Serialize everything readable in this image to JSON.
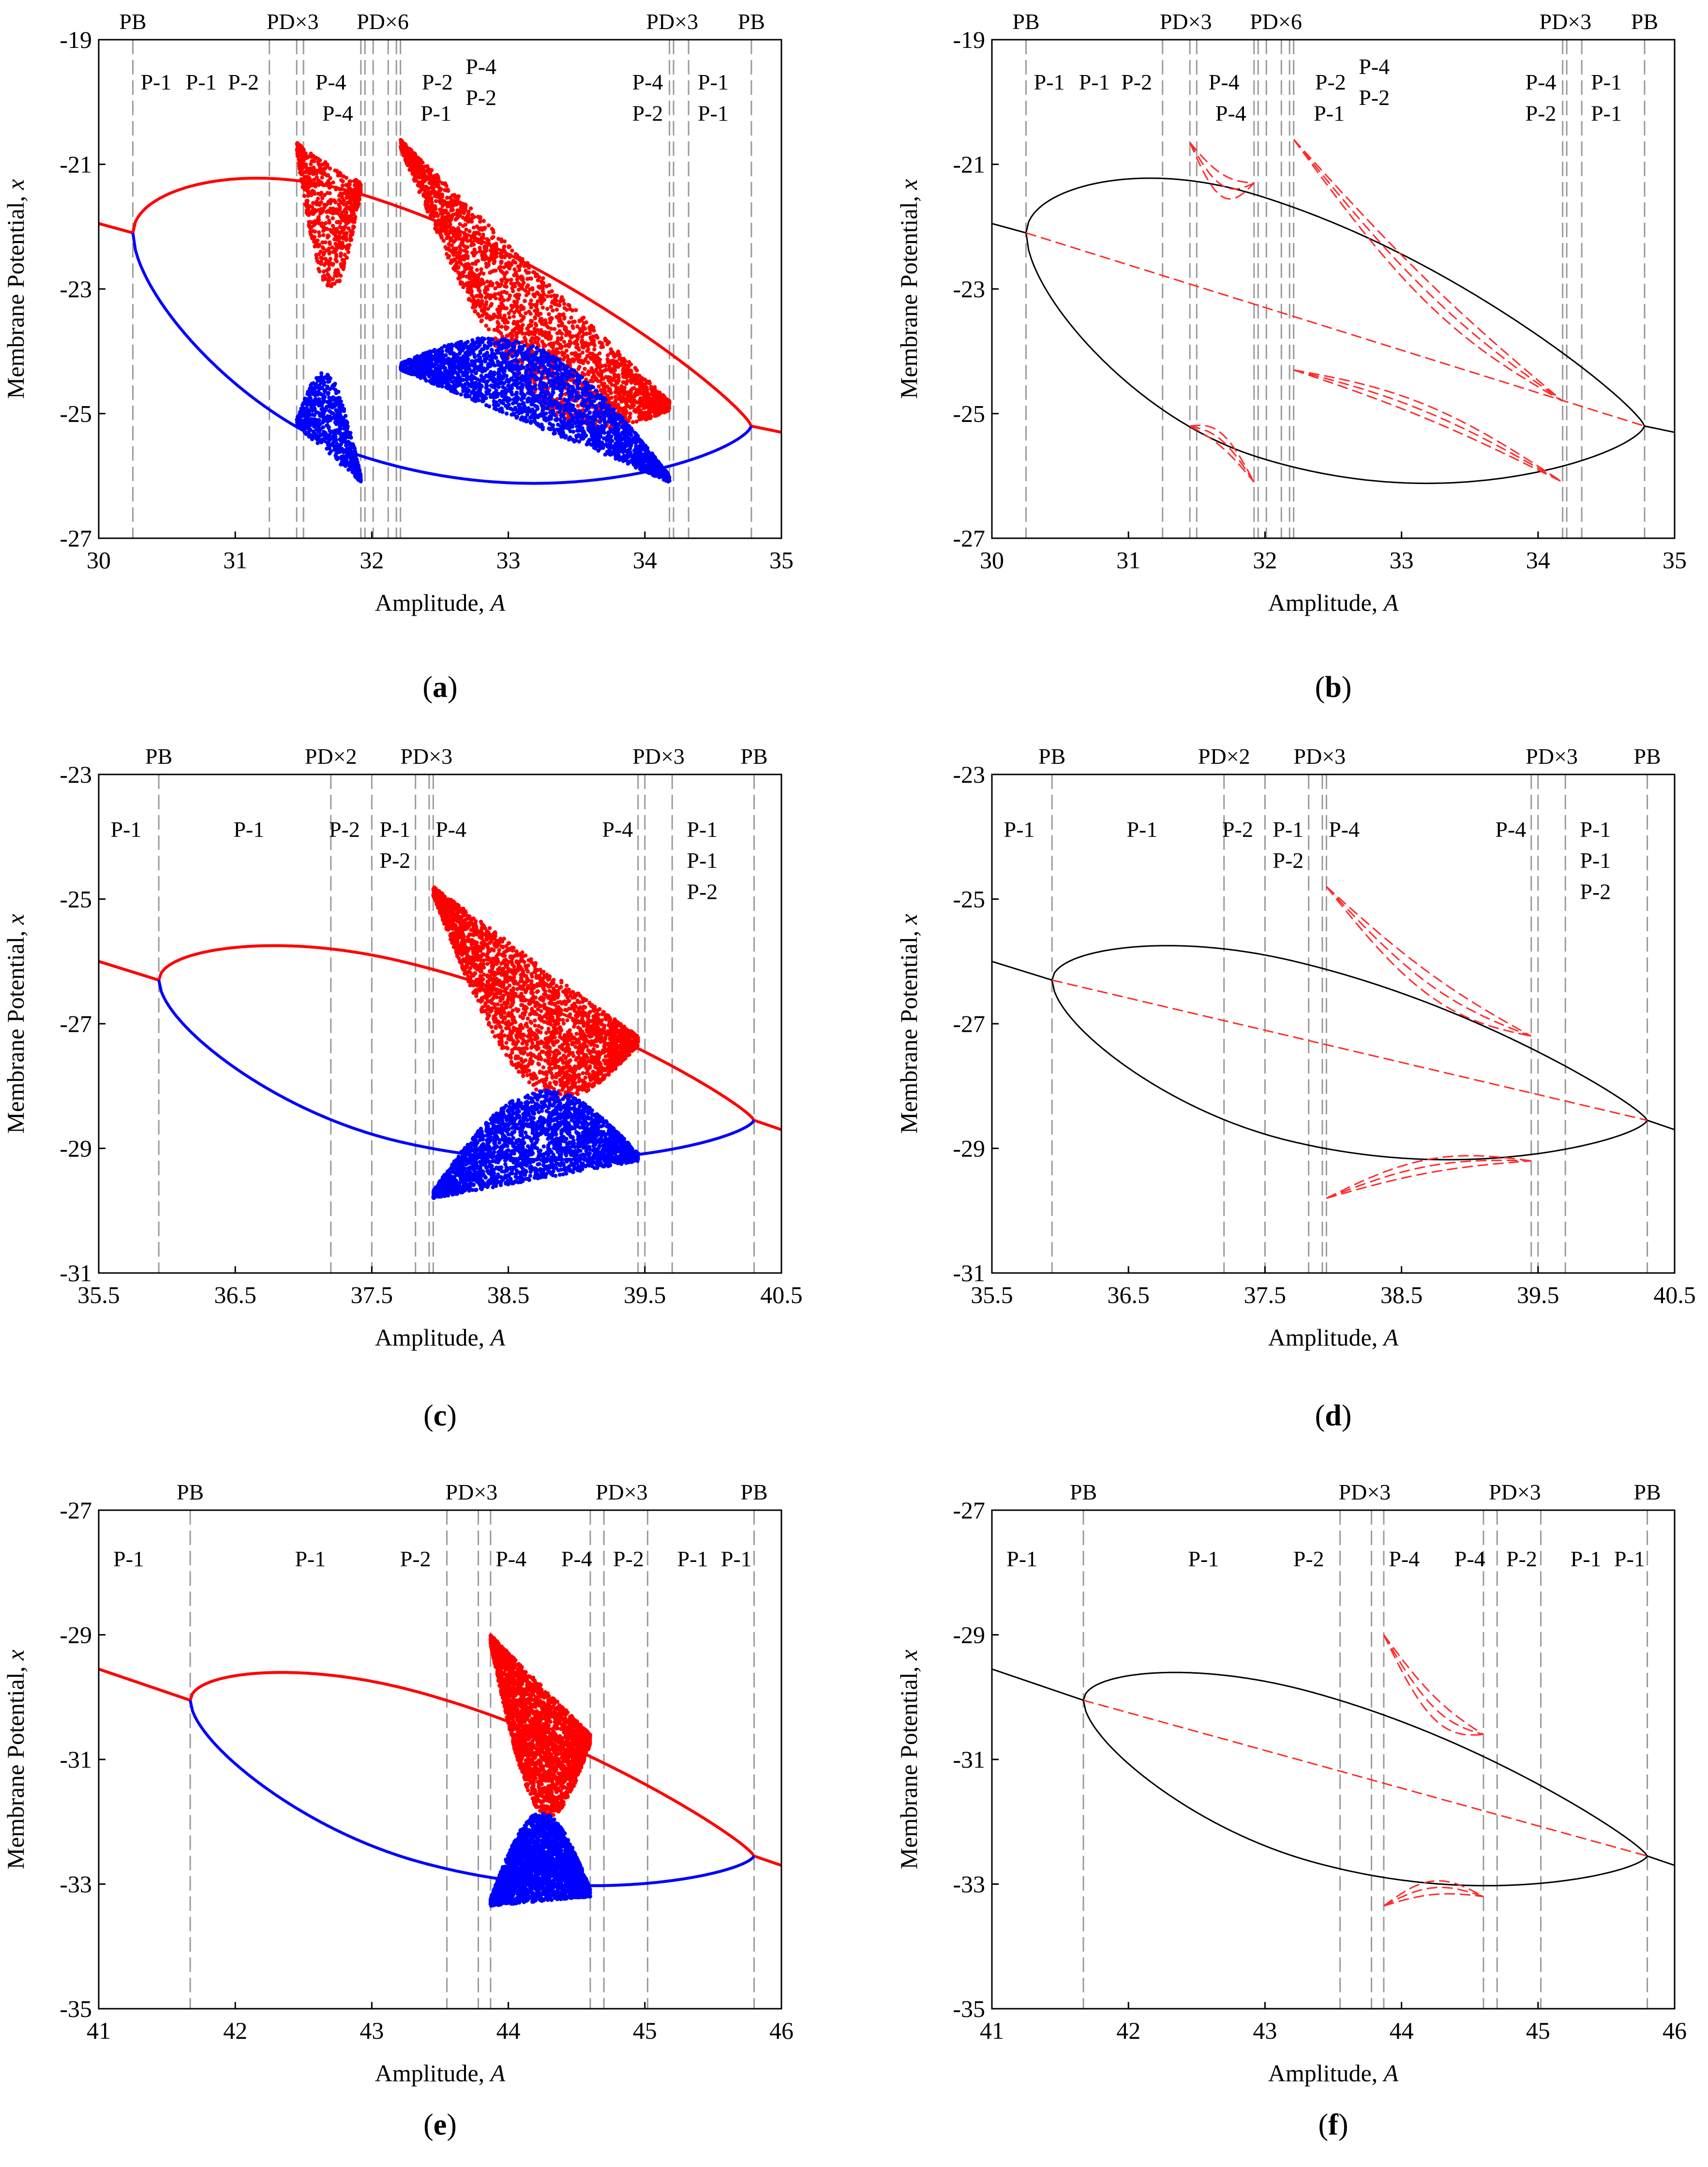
{
  "colors": {
    "red": "#ff0000",
    "blue": "#0000ff",
    "black": "#000000",
    "guide": "#9a9a9a",
    "dashed_red": "#ff2a2a"
  },
  "chart_data": [
    {
      "id": "a",
      "caption": "(a)",
      "type": "scatter",
      "xlabel": "Amplitude, A",
      "ylabel": "Membrane Potential, x",
      "xlim": [
        30,
        35
      ],
      "ylim": [
        -27,
        -19
      ],
      "xticks": [
        "30",
        "31",
        "32",
        "33",
        "34",
        "35"
      ],
      "yticks": [
        "-27",
        "-25",
        "-23",
        "-21",
        "-19"
      ],
      "boundaries": [
        30.25,
        31.25,
        31.45,
        31.5,
        31.92,
        31.95,
        32.01,
        32.12,
        32.18,
        32.21,
        34.18,
        34.21,
        34.32,
        34.78
      ],
      "top_labels": [
        {
          "x": 30.25,
          "text": "PB"
        },
        {
          "x": 31.42,
          "text": "PD×3"
        },
        {
          "x": 32.08,
          "text": "PD×6"
        },
        {
          "x": 34.2,
          "text": "PD×3"
        },
        {
          "x": 34.78,
          "text": "PB"
        }
      ],
      "region_labels": [
        {
          "x": 30.42,
          "y": -19.8,
          "text": "P-1"
        },
        {
          "x": 30.75,
          "y": -19.8,
          "text": "P-1"
        },
        {
          "x": 31.06,
          "y": -19.8,
          "text": "P-2"
        },
        {
          "x": 31.7,
          "y": -19.8,
          "text": "P-4"
        },
        {
          "x": 31.75,
          "y": -20.3,
          "text": "P-4"
        },
        {
          "x": 32.48,
          "y": -19.8,
          "text": "P-2"
        },
        {
          "x": 32.47,
          "y": -20.3,
          "text": "P-1"
        },
        {
          "x": 32.8,
          "y": -19.55,
          "text": "P-4"
        },
        {
          "x": 32.8,
          "y": -20.05,
          "text": "P-2"
        },
        {
          "x": 34.02,
          "y": -19.8,
          "text": "P-4"
        },
        {
          "x": 34.02,
          "y": -20.3,
          "text": "P-2"
        },
        {
          "x": 34.5,
          "y": -19.8,
          "text": "P-1"
        },
        {
          "x": 34.5,
          "y": -20.3,
          "text": "P-1"
        }
      ],
      "pre": [
        30,
        30.25
      ],
      "post": [
        34.78,
        35
      ],
      "p1_range": [
        30.25,
        34.78
      ],
      "p1_mean": [
        -22.1,
        -25.2
      ],
      "p1_peak_x": 31.95,
      "p1_peak_amp": 4.2,
      "chaos_windows": [
        {
          "x0": 31.45,
          "x1": 31.92,
          "upper": [
            -20.65,
            -21.3
          ],
          "lower": [
            -25.2,
            -26.1
          ]
        },
        {
          "x0": 32.21,
          "x1": 34.18,
          "upper": [
            -20.6,
            -24.8
          ],
          "lower": [
            -24.3,
            -26.1
          ]
        }
      ],
      "stable_line": [
        [
          30,
          -21.95
        ],
        [
          30.25,
          -22.1
        ],
        [
          34.78,
          -25.2
        ],
        [
          35,
          -25.3
        ]
      ]
    },
    {
      "id": "b",
      "caption": "(b)",
      "type": "line",
      "xlabel": "Amplitude, A",
      "ylabel": "Membrane Potential, x",
      "xlim": [
        30,
        35
      ],
      "ylim": [
        -27,
        -19
      ],
      "xticks": [
        "30",
        "31",
        "32",
        "33",
        "34",
        "35"
      ],
      "yticks": [
        "-27",
        "-25",
        "-23",
        "-21",
        "-19"
      ],
      "boundaries": [
        30.25,
        31.25,
        31.45,
        31.5,
        31.92,
        31.95,
        32.01,
        32.12,
        32.18,
        32.21,
        34.18,
        34.21,
        34.32,
        34.78
      ],
      "top_labels": [
        {
          "x": 30.25,
          "text": "PB"
        },
        {
          "x": 31.42,
          "text": "PD×3"
        },
        {
          "x": 32.08,
          "text": "PD×6"
        },
        {
          "x": 34.2,
          "text": "PD×3"
        },
        {
          "x": 34.78,
          "text": "PB"
        }
      ],
      "region_labels": [
        {
          "x": 30.42,
          "y": -19.8,
          "text": "P-1"
        },
        {
          "x": 30.75,
          "y": -19.8,
          "text": "P-1"
        },
        {
          "x": 31.06,
          "y": -19.8,
          "text": "P-2"
        },
        {
          "x": 31.7,
          "y": -19.8,
          "text": "P-4"
        },
        {
          "x": 31.75,
          "y": -20.3,
          "text": "P-4"
        },
        {
          "x": 32.48,
          "y": -19.8,
          "text": "P-2"
        },
        {
          "x": 32.47,
          "y": -20.3,
          "text": "P-1"
        },
        {
          "x": 32.8,
          "y": -19.55,
          "text": "P-4"
        },
        {
          "x": 32.8,
          "y": -20.05,
          "text": "P-2"
        },
        {
          "x": 34.02,
          "y": -19.8,
          "text": "P-4"
        },
        {
          "x": 34.02,
          "y": -20.3,
          "text": "P-2"
        },
        {
          "x": 34.5,
          "y": -19.8,
          "text": "P-1"
        },
        {
          "x": 34.5,
          "y": -20.3,
          "text": "P-1"
        }
      ],
      "pre": [
        30,
        30.25
      ],
      "post": [
        34.78,
        35
      ],
      "p1_range": [
        30.25,
        34.78
      ],
      "p1_mean": [
        -22.1,
        -25.2
      ],
      "p1_peak_x": 31.95,
      "p1_peak_amp": 4.2,
      "chaos_windows": [
        {
          "x0": 31.45,
          "x1": 31.92,
          "upper": [
            -20.65,
            -21.3
          ],
          "lower": [
            -25.2,
            -26.1
          ]
        },
        {
          "x0": 32.21,
          "x1": 34.18,
          "upper": [
            -20.6,
            -24.8
          ],
          "lower": [
            -24.3,
            -26.1
          ]
        }
      ],
      "stable_line": [
        [
          30,
          -21.95
        ],
        [
          30.25,
          -22.1
        ],
        [
          34.78,
          -25.2
        ],
        [
          35,
          -25.3
        ]
      ]
    },
    {
      "id": "c",
      "caption": "(c)",
      "type": "scatter",
      "xlabel": "Amplitude, A",
      "ylabel": "Membrane Potential, x",
      "xlim": [
        35.5,
        40.5
      ],
      "ylim": [
        -31,
        -23
      ],
      "xticks": [
        "35.5",
        "36.5",
        "37.5",
        "38.5",
        "39.5",
        "40.5"
      ],
      "yticks": [
        "-31",
        "-29",
        "-27",
        "-25",
        "-23"
      ],
      "boundaries": [
        35.94,
        37.2,
        37.5,
        37.82,
        37.92,
        37.95,
        39.45,
        39.5,
        39.7,
        40.3
      ],
      "top_labels": [
        {
          "x": 35.94,
          "text": "PB"
        },
        {
          "x": 37.2,
          "text": "PD×2"
        },
        {
          "x": 37.9,
          "text": "PD×3"
        },
        {
          "x": 39.6,
          "text": "PD×3"
        },
        {
          "x": 40.3,
          "text": "PB"
        }
      ],
      "region_labels": [
        {
          "x": 35.7,
          "y": -24.0,
          "text": "P-1"
        },
        {
          "x": 36.6,
          "y": -24.0,
          "text": "P-1"
        },
        {
          "x": 37.3,
          "y": -24.0,
          "text": "P-2"
        },
        {
          "x": 37.67,
          "y": -24.0,
          "text": "P-1"
        },
        {
          "x": 37.67,
          "y": -24.5,
          "text": "P-2"
        },
        {
          "x": 38.08,
          "y": -24.0,
          "text": "P-4"
        },
        {
          "x": 39.3,
          "y": -24.0,
          "text": "P-4"
        },
        {
          "x": 39.92,
          "y": -24.0,
          "text": "P-1"
        },
        {
          "x": 39.92,
          "y": -24.5,
          "text": "P-1"
        },
        {
          "x": 39.92,
          "y": -25.0,
          "text": "P-2"
        }
      ],
      "pre": [
        35.5,
        35.94
      ],
      "post": [
        40.3,
        40.5
      ],
      "p1_range": [
        35.94,
        40.3
      ],
      "p1_mean": [
        -26.3,
        -28.55
      ],
      "p1_peak_x": 37.7,
      "p1_peak_amp": 2.9,
      "chaos_windows": [
        {
          "x0": 37.95,
          "x1": 39.45,
          "upper": [
            -24.8,
            -27.2
          ],
          "lower": [
            -29.8,
            -29.2
          ]
        }
      ],
      "stable_line": [
        [
          35.5,
          -26.0
        ],
        [
          35.94,
          -26.3
        ],
        [
          40.3,
          -28.55
        ],
        [
          40.5,
          -28.7
        ]
      ]
    },
    {
      "id": "d",
      "caption": "(d)",
      "type": "line",
      "xlabel": "Amplitude, A",
      "ylabel": "Membrane Potential, x",
      "xlim": [
        35.5,
        40.5
      ],
      "ylim": [
        -31,
        -23
      ],
      "xticks": [
        "35.5",
        "36.5",
        "37.5",
        "38.5",
        "39.5",
        "40.5"
      ],
      "yticks": [
        "-31",
        "-29",
        "-27",
        "-25",
        "-23"
      ],
      "boundaries": [
        35.94,
        37.2,
        37.5,
        37.82,
        37.92,
        37.95,
        39.45,
        39.5,
        39.7,
        40.3
      ],
      "top_labels": [
        {
          "x": 35.94,
          "text": "PB"
        },
        {
          "x": 37.2,
          "text": "PD×2"
        },
        {
          "x": 37.9,
          "text": "PD×3"
        },
        {
          "x": 39.6,
          "text": "PD×3"
        },
        {
          "x": 40.3,
          "text": "PB"
        }
      ],
      "region_labels": [
        {
          "x": 35.7,
          "y": -24.0,
          "text": "P-1"
        },
        {
          "x": 36.6,
          "y": -24.0,
          "text": "P-1"
        },
        {
          "x": 37.3,
          "y": -24.0,
          "text": "P-2"
        },
        {
          "x": 37.67,
          "y": -24.0,
          "text": "P-1"
        },
        {
          "x": 37.67,
          "y": -24.5,
          "text": "P-2"
        },
        {
          "x": 38.08,
          "y": -24.0,
          "text": "P-4"
        },
        {
          "x": 39.3,
          "y": -24.0,
          "text": "P-4"
        },
        {
          "x": 39.92,
          "y": -24.0,
          "text": "P-1"
        },
        {
          "x": 39.92,
          "y": -24.5,
          "text": "P-1"
        },
        {
          "x": 39.92,
          "y": -25.0,
          "text": "P-2"
        }
      ],
      "pre": [
        35.5,
        35.94
      ],
      "post": [
        40.3,
        40.5
      ],
      "p1_range": [
        35.94,
        40.3
      ],
      "p1_mean": [
        -26.3,
        -28.55
      ],
      "p1_peak_x": 37.7,
      "p1_peak_amp": 2.9,
      "chaos_windows": [
        {
          "x0": 37.95,
          "x1": 39.45,
          "upper": [
            -24.8,
            -27.2
          ],
          "lower": [
            -29.8,
            -29.2
          ]
        }
      ],
      "stable_line": [
        [
          35.5,
          -26.0
        ],
        [
          35.94,
          -26.3
        ],
        [
          40.3,
          -28.55
        ],
        [
          40.5,
          -28.7
        ]
      ]
    },
    {
      "id": "e",
      "caption": "(e)",
      "type": "scatter",
      "xlabel": "Amplitude, A",
      "ylabel": "Membrane Potential, x",
      "xlim": [
        41,
        46
      ],
      "ylim": [
        -35,
        -27
      ],
      "xticks": [
        "41",
        "42",
        "43",
        "44",
        "45",
        "46"
      ],
      "yticks": [
        "-35",
        "-33",
        "-31",
        "-29",
        "-27"
      ],
      "boundaries": [
        41.67,
        43.55,
        43.78,
        43.87,
        44.6,
        44.7,
        45.02,
        45.8
      ],
      "top_labels": [
        {
          "x": 41.67,
          "text": "PB"
        },
        {
          "x": 43.73,
          "text": "PD×3"
        },
        {
          "x": 44.83,
          "text": "PD×3"
        },
        {
          "x": 45.8,
          "text": "PB"
        }
      ],
      "region_labels": [
        {
          "x": 41.22,
          "y": -27.9,
          "text": "P-1"
        },
        {
          "x": 42.55,
          "y": -27.9,
          "text": "P-1"
        },
        {
          "x": 43.32,
          "y": -27.9,
          "text": "P-2"
        },
        {
          "x": 44.02,
          "y": -27.9,
          "text": "P-4"
        },
        {
          "x": 44.5,
          "y": -27.9,
          "text": "P-4"
        },
        {
          "x": 44.88,
          "y": -27.9,
          "text": "P-2"
        },
        {
          "x": 45.35,
          "y": -27.9,
          "text": "P-1"
        },
        {
          "x": 45.67,
          "y": -27.9,
          "text": "P-1"
        }
      ],
      "pre": [
        41,
        41.67
      ],
      "post": [
        45.8,
        46
      ],
      "p1_range": [
        41.67,
        45.8
      ],
      "p1_mean": [
        -30.05,
        -32.55
      ],
      "p1_peak_x": 43.35,
      "p1_peak_amp": 2.72,
      "chaos_windows": [
        {
          "x0": 43.87,
          "x1": 44.6,
          "upper": [
            -29.0,
            -30.6
          ],
          "lower": [
            -33.35,
            -33.2
          ]
        }
      ],
      "stable_line": [
        [
          41,
          -29.55
        ],
        [
          41.67,
          -30.05
        ],
        [
          45.8,
          -32.55
        ],
        [
          46,
          -32.7
        ]
      ]
    },
    {
      "id": "f",
      "caption": "(f)",
      "type": "line",
      "xlabel": "Amplitude, A",
      "ylabel": "Membrane Potential, x",
      "xlim": [
        41,
        46
      ],
      "ylim": [
        -35,
        -27
      ],
      "xticks": [
        "41",
        "42",
        "43",
        "44",
        "45",
        "46"
      ],
      "yticks": [
        "-35",
        "-33",
        "-31",
        "-29",
        "-27"
      ],
      "boundaries": [
        41.67,
        43.55,
        43.78,
        43.87,
        44.6,
        44.7,
        45.02,
        45.8
      ],
      "top_labels": [
        {
          "x": 41.67,
          "text": "PB"
        },
        {
          "x": 43.73,
          "text": "PD×3"
        },
        {
          "x": 44.83,
          "text": "PD×3"
        },
        {
          "x": 45.8,
          "text": "PB"
        }
      ],
      "region_labels": [
        {
          "x": 41.22,
          "y": -27.9,
          "text": "P-1"
        },
        {
          "x": 42.55,
          "y": -27.9,
          "text": "P-1"
        },
        {
          "x": 43.32,
          "y": -27.9,
          "text": "P-2"
        },
        {
          "x": 44.02,
          "y": -27.9,
          "text": "P-4"
        },
        {
          "x": 44.5,
          "y": -27.9,
          "text": "P-4"
        },
        {
          "x": 44.88,
          "y": -27.9,
          "text": "P-2"
        },
        {
          "x": 45.35,
          "y": -27.9,
          "text": "P-1"
        },
        {
          "x": 45.67,
          "y": -27.9,
          "text": "P-1"
        }
      ],
      "pre": [
        41,
        41.67
      ],
      "post": [
        45.8,
        46
      ],
      "p1_range": [
        41.67,
        45.8
      ],
      "p1_mean": [
        -30.05,
        -32.55
      ],
      "p1_peak_x": 43.35,
      "p1_peak_amp": 2.72,
      "chaos_windows": [
        {
          "x0": 43.87,
          "x1": 44.6,
          "upper": [
            -29.0,
            -30.6
          ],
          "lower": [
            -33.35,
            -33.2
          ]
        }
      ],
      "stable_line": [
        [
          41,
          -29.55
        ],
        [
          41.67,
          -30.05
        ],
        [
          45.8,
          -32.55
        ],
        [
          46,
          -32.7
        ]
      ]
    }
  ]
}
